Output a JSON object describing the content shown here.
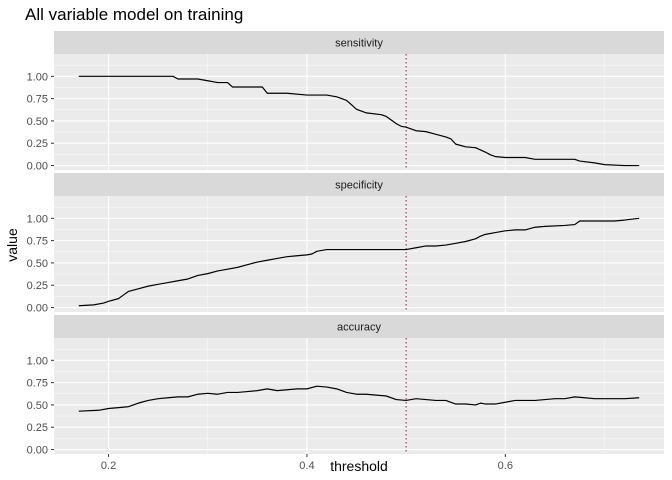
{
  "colors": {
    "panel": "#ebebeb",
    "strip": "#d9d9d9",
    "grid_major": "#ffffff",
    "line": "#000000",
    "threshold_marker": "#8b1a3a"
  },
  "chart_data": {
    "type": "line",
    "title": "All variable model on training",
    "xlabel": "threshold",
    "ylabel": "value",
    "xlim": [
      0.145,
      0.76
    ],
    "ylim": [
      -0.05,
      1.25
    ],
    "x_ticks": [
      0.2,
      0.4,
      0.6
    ],
    "x_tick_labels": [
      "0.2",
      "0.4",
      "0.6"
    ],
    "y_ticks": [
      0,
      0.25,
      0.5,
      0.75,
      1
    ],
    "y_tick_labels": [
      "0.00",
      "0.25",
      "0.50",
      "0.75",
      "1.00"
    ],
    "vline": 0.5,
    "grid": true,
    "series": [
      {
        "name": "sensitivity",
        "x": [
          0.17,
          0.265,
          0.27,
          0.29,
          0.3,
          0.31,
          0.32,
          0.325,
          0.355,
          0.36,
          0.38,
          0.4,
          0.42,
          0.43,
          0.435,
          0.44,
          0.445,
          0.45,
          0.46,
          0.475,
          0.48,
          0.485,
          0.49,
          0.495,
          0.5,
          0.51,
          0.52,
          0.53,
          0.54,
          0.545,
          0.55,
          0.56,
          0.57,
          0.58,
          0.585,
          0.59,
          0.6,
          0.62,
          0.63,
          0.64,
          0.67,
          0.675,
          0.69,
          0.7,
          0.72,
          0.735
        ],
        "y": [
          1.0,
          1.0,
          0.97,
          0.97,
          0.95,
          0.93,
          0.93,
          0.88,
          0.88,
          0.81,
          0.81,
          0.79,
          0.79,
          0.77,
          0.75,
          0.73,
          0.68,
          0.63,
          0.59,
          0.57,
          0.55,
          0.51,
          0.47,
          0.44,
          0.43,
          0.39,
          0.38,
          0.35,
          0.32,
          0.3,
          0.24,
          0.21,
          0.2,
          0.15,
          0.12,
          0.1,
          0.09,
          0.09,
          0.07,
          0.07,
          0.07,
          0.05,
          0.03,
          0.01,
          0.0,
          0.0
        ]
      },
      {
        "name": "specificity",
        "x": [
          0.17,
          0.185,
          0.195,
          0.2,
          0.21,
          0.215,
          0.22,
          0.23,
          0.24,
          0.25,
          0.26,
          0.27,
          0.28,
          0.29,
          0.3,
          0.31,
          0.32,
          0.33,
          0.34,
          0.35,
          0.36,
          0.37,
          0.38,
          0.39,
          0.4,
          0.405,
          0.41,
          0.42,
          0.5,
          0.51,
          0.52,
          0.53,
          0.54,
          0.55,
          0.56,
          0.57,
          0.575,
          0.58,
          0.59,
          0.6,
          0.61,
          0.62,
          0.63,
          0.64,
          0.66,
          0.67,
          0.675,
          0.7,
          0.71,
          0.72,
          0.735
        ],
        "y": [
          0.02,
          0.03,
          0.05,
          0.07,
          0.1,
          0.14,
          0.18,
          0.21,
          0.24,
          0.26,
          0.28,
          0.3,
          0.32,
          0.36,
          0.38,
          0.41,
          0.43,
          0.45,
          0.48,
          0.51,
          0.53,
          0.55,
          0.57,
          0.58,
          0.59,
          0.6,
          0.63,
          0.65,
          0.65,
          0.67,
          0.69,
          0.69,
          0.7,
          0.72,
          0.74,
          0.77,
          0.8,
          0.82,
          0.84,
          0.86,
          0.87,
          0.87,
          0.9,
          0.91,
          0.92,
          0.93,
          0.97,
          0.97,
          0.97,
          0.98,
          1.0
        ]
      },
      {
        "name": "accuracy",
        "x": [
          0.17,
          0.19,
          0.2,
          0.21,
          0.22,
          0.23,
          0.24,
          0.25,
          0.26,
          0.27,
          0.28,
          0.29,
          0.3,
          0.31,
          0.32,
          0.33,
          0.34,
          0.35,
          0.36,
          0.37,
          0.38,
          0.39,
          0.4,
          0.41,
          0.42,
          0.43,
          0.44,
          0.45,
          0.46,
          0.47,
          0.48,
          0.49,
          0.5,
          0.51,
          0.52,
          0.53,
          0.54,
          0.55,
          0.56,
          0.57,
          0.575,
          0.58,
          0.59,
          0.6,
          0.61,
          0.62,
          0.63,
          0.64,
          0.65,
          0.66,
          0.67,
          0.68,
          0.69,
          0.7,
          0.72,
          0.735
        ],
        "y": [
          0.43,
          0.44,
          0.46,
          0.47,
          0.48,
          0.52,
          0.55,
          0.57,
          0.58,
          0.59,
          0.59,
          0.62,
          0.63,
          0.62,
          0.64,
          0.64,
          0.65,
          0.66,
          0.68,
          0.66,
          0.67,
          0.68,
          0.68,
          0.71,
          0.7,
          0.68,
          0.64,
          0.62,
          0.62,
          0.61,
          0.6,
          0.56,
          0.55,
          0.57,
          0.56,
          0.55,
          0.55,
          0.51,
          0.51,
          0.5,
          0.52,
          0.51,
          0.51,
          0.53,
          0.55,
          0.55,
          0.55,
          0.56,
          0.57,
          0.57,
          0.59,
          0.58,
          0.57,
          0.57,
          0.57,
          0.58
        ]
      }
    ]
  }
}
